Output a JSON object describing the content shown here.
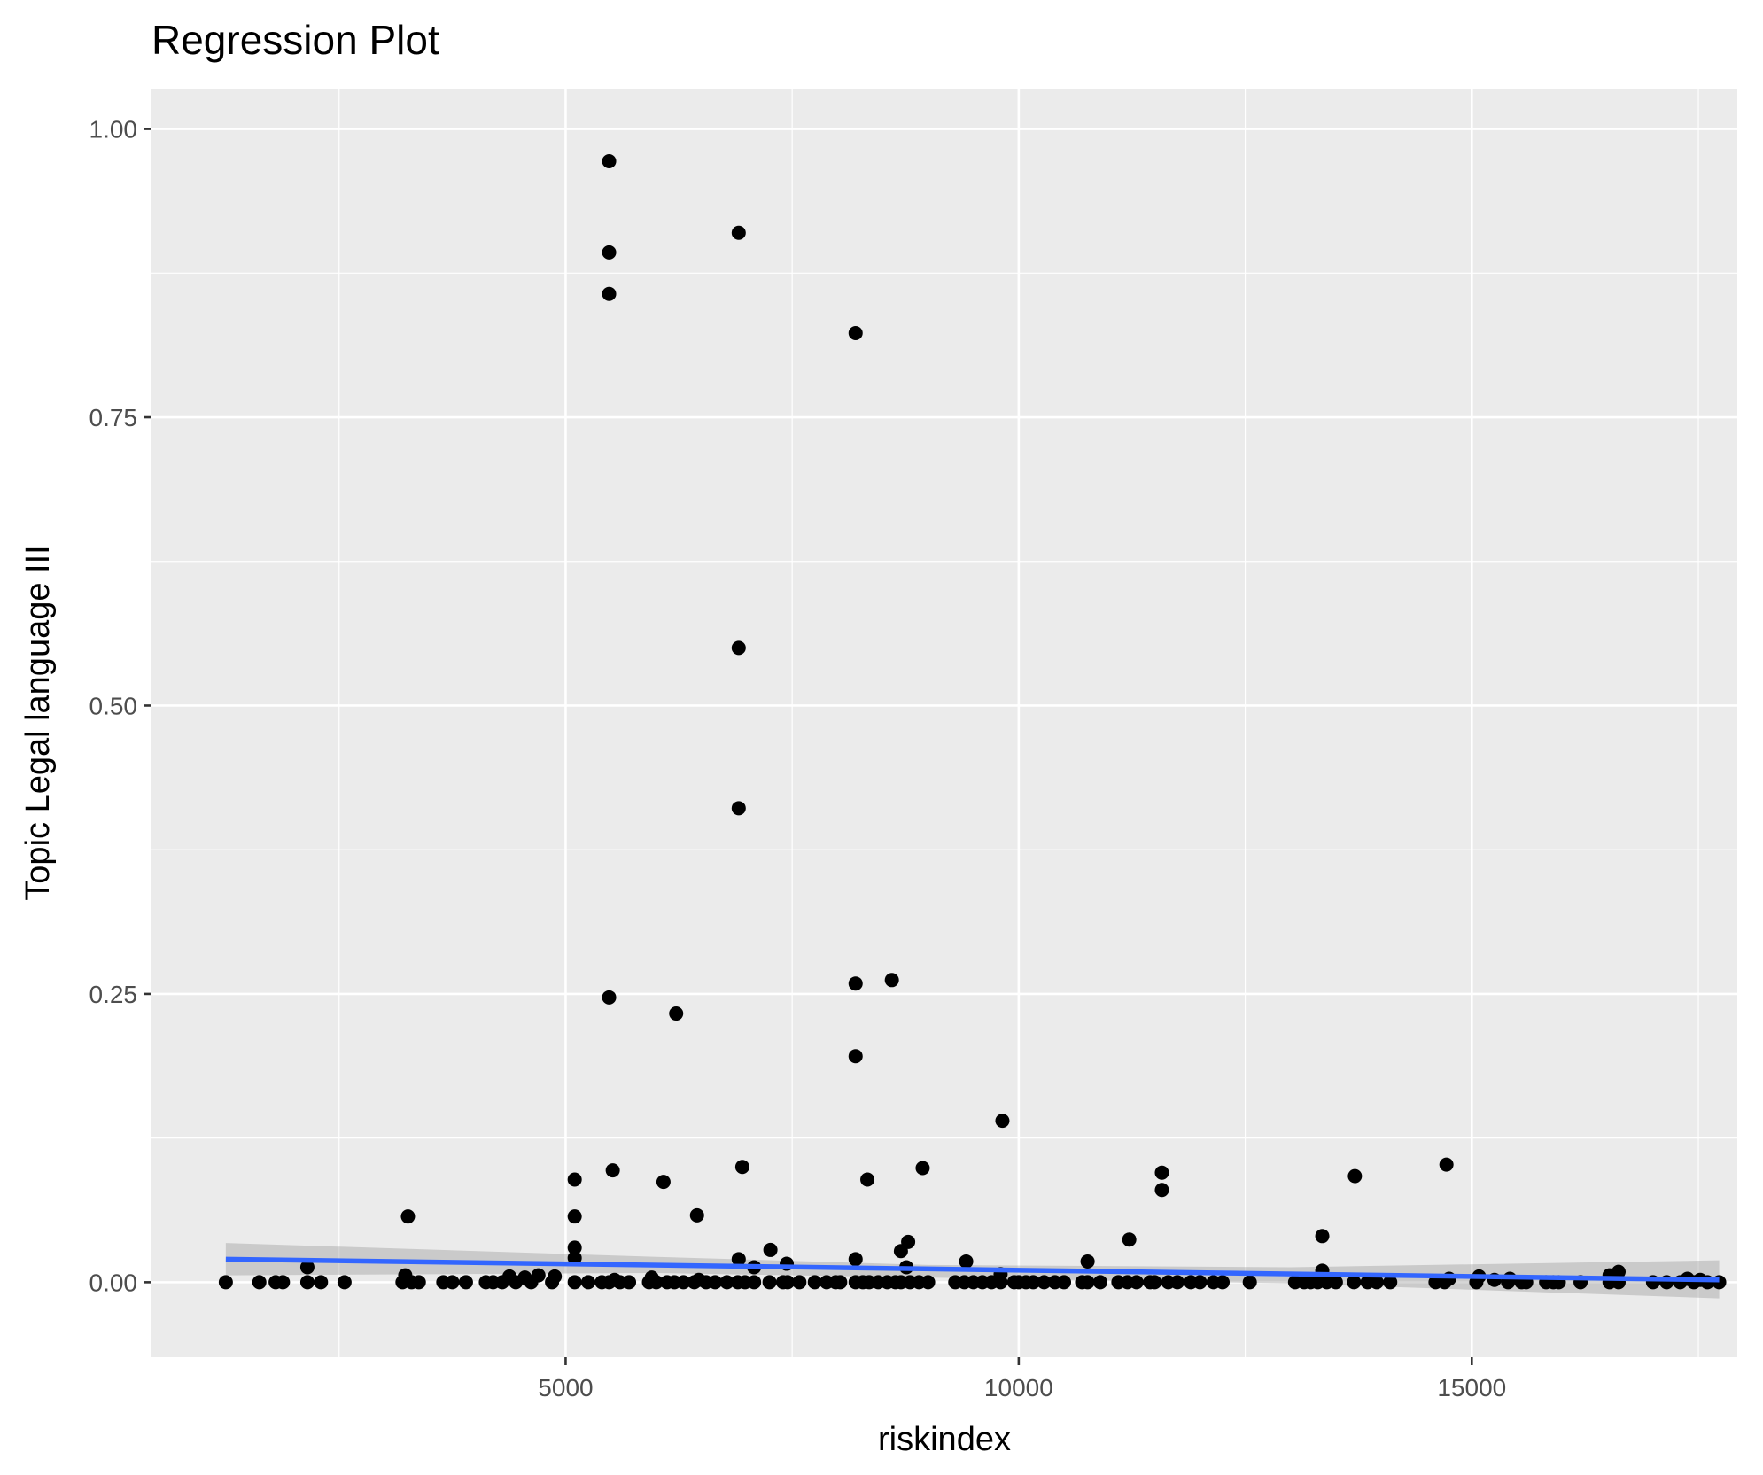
{
  "chart_data": {
    "type": "scatter",
    "title": "Regression Plot",
    "xlabel": "riskindex",
    "ylabel": "Topic Legal language III",
    "xlim": [
      430,
      17930
    ],
    "ylim": [
      -0.065,
      1.035
    ],
    "x_ticks": [
      5000,
      10000,
      15000
    ],
    "x_tick_labels": [
      "5000",
      "10000",
      "15000"
    ],
    "y_ticks": [
      0,
      0.25,
      0.5,
      0.75,
      1.0
    ],
    "y_tick_labels": [
      "0.00",
      "0.25",
      "0.50",
      "0.75",
      "1.00"
    ],
    "grid": true,
    "legend": "none",
    "points": [
      {
        "x": 1250,
        "y": 0.0
      },
      {
        "x": 1620,
        "y": 0.0
      },
      {
        "x": 1800,
        "y": 0.0
      },
      {
        "x": 1880,
        "y": 0.0
      },
      {
        "x": 2150,
        "y": 0.0
      },
      {
        "x": 2150,
        "y": 0.013
      },
      {
        "x": 2300,
        "y": 0.0
      },
      {
        "x": 2560,
        "y": 0.0
      },
      {
        "x": 3200,
        "y": 0.0
      },
      {
        "x": 3230,
        "y": 0.006
      },
      {
        "x": 3260,
        "y": 0.057
      },
      {
        "x": 3300,
        "y": 0.0
      },
      {
        "x": 3380,
        "y": 0.0
      },
      {
        "x": 3650,
        "y": 0.0
      },
      {
        "x": 3750,
        "y": 0.0
      },
      {
        "x": 3900,
        "y": 0.0
      },
      {
        "x": 4120,
        "y": 0.0
      },
      {
        "x": 4200,
        "y": 0.0
      },
      {
        "x": 4300,
        "y": 0.0
      },
      {
        "x": 4380,
        "y": 0.005
      },
      {
        "x": 4450,
        "y": 0.0
      },
      {
        "x": 4550,
        "y": 0.004
      },
      {
        "x": 4620,
        "y": 0.0
      },
      {
        "x": 4700,
        "y": 0.006
      },
      {
        "x": 4850,
        "y": 0.0
      },
      {
        "x": 4880,
        "y": 0.005
      },
      {
        "x": 5100,
        "y": 0.0
      },
      {
        "x": 5100,
        "y": 0.021
      },
      {
        "x": 5100,
        "y": 0.03
      },
      {
        "x": 5100,
        "y": 0.057
      },
      {
        "x": 5100,
        "y": 0.089
      },
      {
        "x": 5250,
        "y": 0.0
      },
      {
        "x": 5400,
        "y": 0.0
      },
      {
        "x": 5480,
        "y": 0.0
      },
      {
        "x": 5480,
        "y": 0.247
      },
      {
        "x": 5480,
        "y": 0.857
      },
      {
        "x": 5480,
        "y": 0.893
      },
      {
        "x": 5480,
        "y": 0.972
      },
      {
        "x": 5520,
        "y": 0.097
      },
      {
        "x": 5540,
        "y": 0.002
      },
      {
        "x": 5600,
        "y": 0.0
      },
      {
        "x": 5700,
        "y": 0.0
      },
      {
        "x": 5920,
        "y": 0.0
      },
      {
        "x": 5950,
        "y": 0.004
      },
      {
        "x": 6000,
        "y": 0.0
      },
      {
        "x": 6080,
        "y": 0.087
      },
      {
        "x": 6120,
        "y": 0.0
      },
      {
        "x": 6200,
        "y": 0.0
      },
      {
        "x": 6220,
        "y": 0.233
      },
      {
        "x": 6300,
        "y": 0.0
      },
      {
        "x": 6420,
        "y": 0.0
      },
      {
        "x": 6450,
        "y": 0.058
      },
      {
        "x": 6470,
        "y": 0.002
      },
      {
        "x": 6550,
        "y": 0.0
      },
      {
        "x": 6650,
        "y": 0.0
      },
      {
        "x": 6780,
        "y": 0.0
      },
      {
        "x": 6900,
        "y": 0.0
      },
      {
        "x": 6910,
        "y": 0.02
      },
      {
        "x": 6910,
        "y": 0.411
      },
      {
        "x": 6910,
        "y": 0.55
      },
      {
        "x": 6910,
        "y": 0.91
      },
      {
        "x": 6950,
        "y": 0.1
      },
      {
        "x": 6980,
        "y": 0.0
      },
      {
        "x": 7080,
        "y": 0.0
      },
      {
        "x": 7080,
        "y": 0.013
      },
      {
        "x": 7250,
        "y": 0.0
      },
      {
        "x": 7260,
        "y": 0.028
      },
      {
        "x": 7400,
        "y": 0.0
      },
      {
        "x": 7440,
        "y": 0.016
      },
      {
        "x": 7450,
        "y": 0.0
      },
      {
        "x": 7580,
        "y": 0.0
      },
      {
        "x": 7750,
        "y": 0.0
      },
      {
        "x": 7880,
        "y": 0.0
      },
      {
        "x": 7980,
        "y": 0.0
      },
      {
        "x": 8030,
        "y": 0.0
      },
      {
        "x": 8200,
        "y": 0.0
      },
      {
        "x": 8200,
        "y": 0.02
      },
      {
        "x": 8200,
        "y": 0.196
      },
      {
        "x": 8200,
        "y": 0.259
      },
      {
        "x": 8200,
        "y": 0.823
      },
      {
        "x": 8280,
        "y": 0.0
      },
      {
        "x": 8330,
        "y": 0.089
      },
      {
        "x": 8350,
        "y": 0.0
      },
      {
        "x": 8450,
        "y": 0.0
      },
      {
        "x": 8550,
        "y": 0.0
      },
      {
        "x": 8600,
        "y": 0.262
      },
      {
        "x": 8640,
        "y": 0.0
      },
      {
        "x": 8700,
        "y": 0.0
      },
      {
        "x": 8700,
        "y": 0.027
      },
      {
        "x": 8760,
        "y": 0.013
      },
      {
        "x": 8780,
        "y": 0.035
      },
      {
        "x": 8800,
        "y": 0.0
      },
      {
        "x": 8900,
        "y": 0.0
      },
      {
        "x": 8940,
        "y": 0.099
      },
      {
        "x": 9000,
        "y": 0.0
      },
      {
        "x": 9300,
        "y": 0.0
      },
      {
        "x": 9400,
        "y": 0.0
      },
      {
        "x": 9420,
        "y": 0.018
      },
      {
        "x": 9500,
        "y": 0.0
      },
      {
        "x": 9600,
        "y": 0.0
      },
      {
        "x": 9700,
        "y": 0.0
      },
      {
        "x": 9800,
        "y": 0.0
      },
      {
        "x": 9800,
        "y": 0.007
      },
      {
        "x": 9820,
        "y": 0.14
      },
      {
        "x": 9950,
        "y": 0.0
      },
      {
        "x": 10000,
        "y": 0.0
      },
      {
        "x": 10080,
        "y": 0.0
      },
      {
        "x": 10160,
        "y": 0.0
      },
      {
        "x": 10280,
        "y": 0.0
      },
      {
        "x": 10400,
        "y": 0.0
      },
      {
        "x": 10500,
        "y": 0.0
      },
      {
        "x": 10700,
        "y": 0.0
      },
      {
        "x": 10760,
        "y": 0.0
      },
      {
        "x": 10760,
        "y": 0.018
      },
      {
        "x": 10900,
        "y": 0.0
      },
      {
        "x": 11100,
        "y": 0.0
      },
      {
        "x": 11200,
        "y": 0.0
      },
      {
        "x": 11220,
        "y": 0.037
      },
      {
        "x": 11300,
        "y": 0.0
      },
      {
        "x": 11450,
        "y": 0.0
      },
      {
        "x": 11500,
        "y": 0.0
      },
      {
        "x": 11580,
        "y": 0.08
      },
      {
        "x": 11580,
        "y": 0.095
      },
      {
        "x": 11650,
        "y": 0.0
      },
      {
        "x": 11750,
        "y": 0.0
      },
      {
        "x": 11900,
        "y": 0.0
      },
      {
        "x": 12000,
        "y": 0.0
      },
      {
        "x": 12150,
        "y": 0.0
      },
      {
        "x": 12250,
        "y": 0.0
      },
      {
        "x": 12550,
        "y": 0.0
      },
      {
        "x": 13050,
        "y": 0.0
      },
      {
        "x": 13150,
        "y": 0.0
      },
      {
        "x": 13220,
        "y": 0.0
      },
      {
        "x": 13300,
        "y": 0.0
      },
      {
        "x": 13350,
        "y": 0.01
      },
      {
        "x": 13350,
        "y": 0.04
      },
      {
        "x": 13400,
        "y": 0.0
      },
      {
        "x": 13500,
        "y": 0.0
      },
      {
        "x": 13700,
        "y": 0.0
      },
      {
        "x": 13710,
        "y": 0.092
      },
      {
        "x": 13850,
        "y": 0.0
      },
      {
        "x": 13950,
        "y": 0.0
      },
      {
        "x": 14100,
        "y": 0.0
      },
      {
        "x": 14600,
        "y": 0.0
      },
      {
        "x": 14700,
        "y": 0.0
      },
      {
        "x": 14720,
        "y": 0.102
      },
      {
        "x": 14750,
        "y": 0.003
      },
      {
        "x": 15050,
        "y": 0.0
      },
      {
        "x": 15080,
        "y": 0.005
      },
      {
        "x": 15250,
        "y": 0.002
      },
      {
        "x": 15400,
        "y": 0.0
      },
      {
        "x": 15420,
        "y": 0.003
      },
      {
        "x": 15550,
        "y": 0.0
      },
      {
        "x": 15600,
        "y": 0.0
      },
      {
        "x": 15820,
        "y": 0.0
      },
      {
        "x": 15900,
        "y": 0.0
      },
      {
        "x": 15960,
        "y": 0.0
      },
      {
        "x": 16200,
        "y": 0.0
      },
      {
        "x": 16520,
        "y": 0.0
      },
      {
        "x": 16520,
        "y": 0.006
      },
      {
        "x": 16620,
        "y": 0.009
      },
      {
        "x": 16620,
        "y": 0.0
      },
      {
        "x": 17000,
        "y": 0.0
      },
      {
        "x": 17150,
        "y": 0.0
      },
      {
        "x": 17300,
        "y": 0.0
      },
      {
        "x": 17380,
        "y": 0.003
      },
      {
        "x": 17450,
        "y": 0.0
      },
      {
        "x": 17520,
        "y": 0.002
      },
      {
        "x": 17600,
        "y": 0.0
      },
      {
        "x": 17730,
        "y": 0.0
      }
    ],
    "regression_line": {
      "color": "#3366ff",
      "x": [
        1250,
        17730
      ],
      "y": [
        0.02,
        0.002
      ]
    },
    "confidence_band": {
      "color": "#999999",
      "x": [
        1250,
        6000,
        9000,
        13000,
        17730
      ],
      "lower": [
        0.006,
        0.008,
        0.004,
        -0.001,
        -0.014
      ],
      "upper": [
        0.034,
        0.022,
        0.015,
        0.013,
        0.019
      ]
    }
  }
}
